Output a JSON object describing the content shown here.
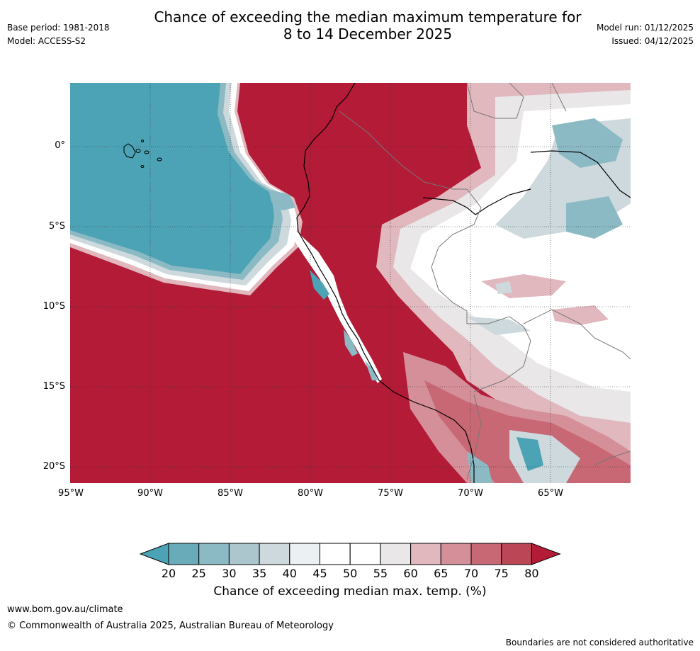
{
  "title_line1": "Chance of exceeding the median maximum temperature for",
  "title_line2": "8 to 14 December 2025",
  "base_period": "Base period: 1981-2018",
  "model": "Model: ACCESS-S2",
  "model_run": "Model run: 01/12/2025",
  "issued": "Issued: 04/12/2025",
  "latitude_labels": [
    "0°",
    "5°S",
    "10°S",
    "15°S",
    "20°S"
  ],
  "longitude_labels": [
    "95°W",
    "90°W",
    "85°W",
    "80°W",
    "75°W",
    "70°W",
    "65°W"
  ],
  "colorbar": {
    "ticks": [
      "20",
      "25",
      "30",
      "35",
      "40",
      "45",
      "50",
      "55",
      "60",
      "65",
      "70",
      "75",
      "80"
    ],
    "colors": [
      "#4ba3b5",
      "#6aabb9",
      "#8bbac4",
      "#acc6cd",
      "#cdd9dc",
      "#ebf0f2",
      "#ffffff",
      "#ffffff",
      "#e9e7e8",
      "#e0b8be",
      "#d48f98",
      "#c86874",
      "#bb4656",
      "#b31b37"
    ],
    "label": "Chance of exceeding median max. temp. (%)"
  },
  "footer": {
    "website": "www.bom.gov.au/climate",
    "copyright": "© Commonwealth of Australia 2025, Australian Bureau of Meteorology",
    "disclaimer": "Boundaries are not considered authoritative"
  }
}
